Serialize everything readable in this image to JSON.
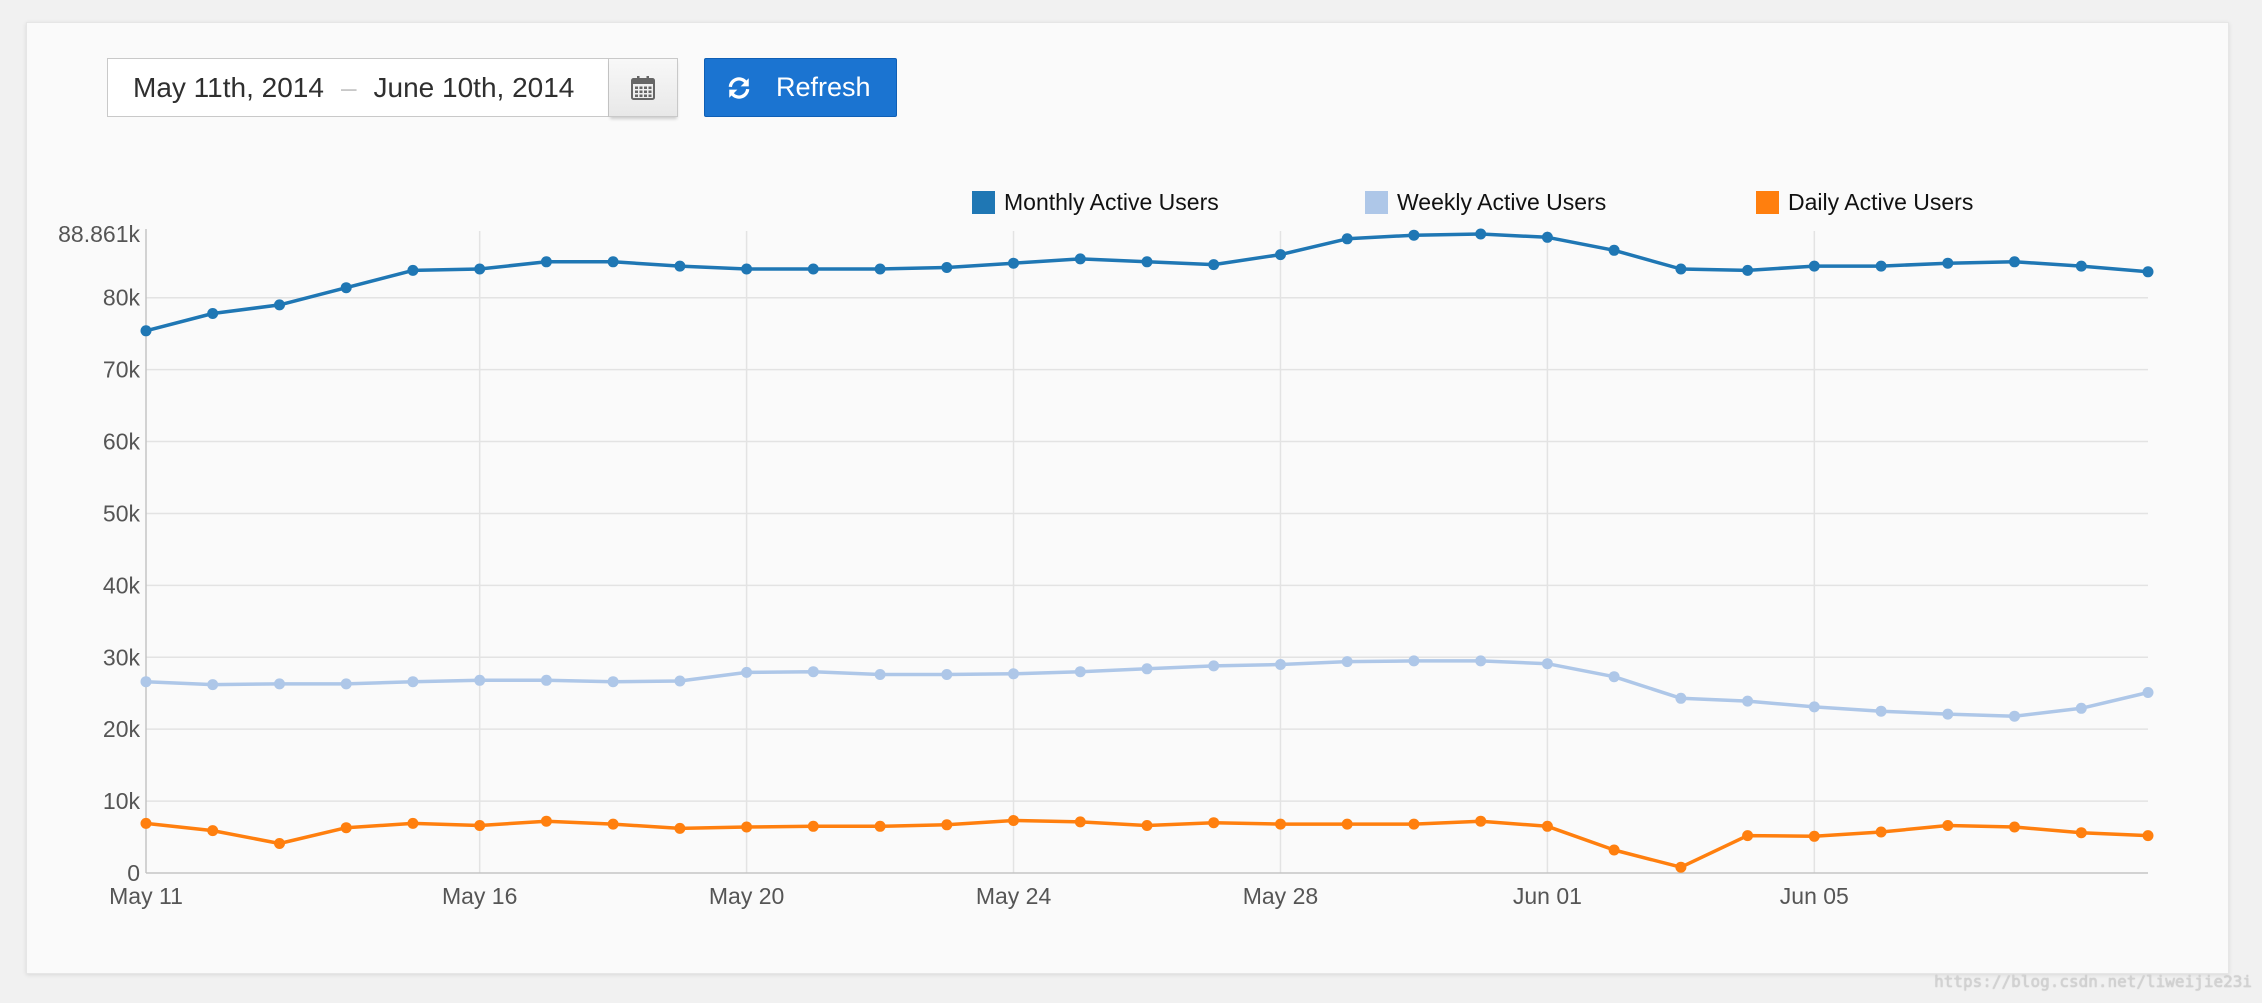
{
  "page": {
    "background": "#f1f1f1",
    "card_background": "#fafafa"
  },
  "date_range": {
    "start": "May 11th, 2014",
    "separator": "–",
    "end": "June 10th, 2014",
    "calendar_icon": "calendar-icon"
  },
  "refresh_button": {
    "label": "Refresh",
    "icon": "refresh-icon",
    "color": "#1b74d1"
  },
  "chart_data": {
    "type": "line",
    "title": "",
    "xlabel": "",
    "ylabel": "",
    "grid": true,
    "legend_position": "top-right",
    "x": [
      0,
      1,
      2,
      3,
      4,
      5,
      6,
      7,
      8,
      9,
      10,
      11,
      12,
      13,
      14,
      15,
      16,
      17,
      18,
      19,
      20,
      21,
      22,
      23,
      24,
      25,
      26,
      27,
      28,
      29,
      30
    ],
    "xlim": [
      0,
      30
    ],
    "xticks": [
      {
        "value": 0,
        "label": "May 11"
      },
      {
        "value": 5,
        "label": "May 16"
      },
      {
        "value": 9,
        "label": "May 20"
      },
      {
        "value": 13,
        "label": "May 24"
      },
      {
        "value": 17,
        "label": "May 28"
      },
      {
        "value": 21,
        "label": "Jun 01"
      },
      {
        "value": 25,
        "label": "Jun 05"
      }
    ],
    "ylim": [
      0,
      88861
    ],
    "yticks": [
      {
        "value": 0,
        "label": "0"
      },
      {
        "value": 10000,
        "label": "10k"
      },
      {
        "value": 20000,
        "label": "20k"
      },
      {
        "value": 30000,
        "label": "30k"
      },
      {
        "value": 40000,
        "label": "40k"
      },
      {
        "value": 50000,
        "label": "50k"
      },
      {
        "value": 60000,
        "label": "60k"
      },
      {
        "value": 70000,
        "label": "70k"
      },
      {
        "value": 80000,
        "label": "80k"
      },
      {
        "value": 88861,
        "label": "88.861k"
      }
    ],
    "series": [
      {
        "name": "Monthly Active Users",
        "color": "#1f77b4",
        "values": [
          75400,
          77800,
          79000,
          81400,
          83800,
          84000,
          85000,
          85000,
          84400,
          84000,
          84000,
          84000,
          84200,
          84800,
          85400,
          85000,
          84600,
          86000,
          88200,
          88700,
          88861,
          88400,
          86600,
          84000,
          83800,
          84400,
          84400,
          84800,
          85000,
          84400,
          83600
        ]
      },
      {
        "name": "Weekly Active Users",
        "color": "#aec7e8",
        "values": [
          26600,
          26200,
          26300,
          26300,
          26600,
          26800,
          26800,
          26600,
          26700,
          27900,
          28000,
          27600,
          27600,
          27700,
          28000,
          28400,
          28800,
          29000,
          29400,
          29500,
          29500,
          29100,
          27300,
          24300,
          23900,
          23100,
          22500,
          22100,
          21800,
          22900,
          25100
        ]
      },
      {
        "name": "Daily Active Users",
        "color": "#ff7f0e",
        "values": [
          6900,
          5900,
          4100,
          6300,
          6900,
          6600,
          7200,
          6800,
          6200,
          6400,
          6500,
          6500,
          6700,
          7300,
          7100,
          6600,
          7000,
          6800,
          6800,
          6800,
          7200,
          6500,
          3200,
          800,
          5200,
          5100,
          5700,
          6600,
          6400,
          5600,
          5200
        ]
      }
    ]
  },
  "watermark": "https://blog.csdn.net/liweijie23i"
}
